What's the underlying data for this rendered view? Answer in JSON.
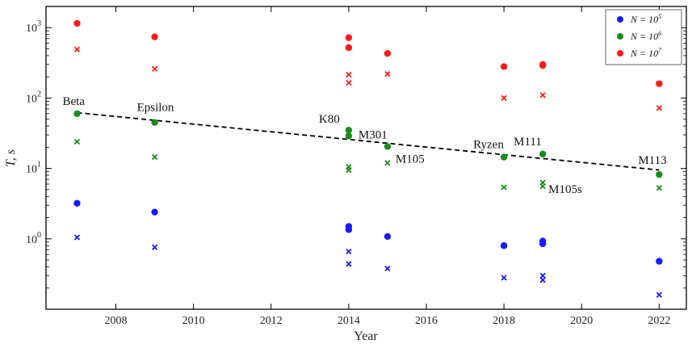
{
  "chart_data": {
    "type": "scatter",
    "xlabel": "Year",
    "ylabel": "T, s",
    "xlim": [
      2006.2,
      2022.7
    ],
    "ylim": [
      0.1,
      2000
    ],
    "yscale": "log",
    "grid": false,
    "legend_position": "top-right",
    "x_ticks": [
      2008,
      2010,
      2012,
      2014,
      2016,
      2018,
      2020,
      2022
    ],
    "y_ticks": [
      {
        "value": 1,
        "base": "10",
        "exp": "0"
      },
      {
        "value": 10,
        "base": "10",
        "exp": "1"
      },
      {
        "value": 100,
        "base": "10",
        "exp": "2"
      },
      {
        "value": 1000,
        "base": "10",
        "exp": "3"
      }
    ],
    "colors": {
      "n1e5": "#1a1aff",
      "n1e6": "#1a8c1a",
      "n1e7": "#ff1a1a"
    },
    "legend": [
      {
        "series": "n1e5",
        "label_prefix": "N = 10",
        "label_exp": "5",
        "color": "#1a1aff"
      },
      {
        "series": "n1e6",
        "label_prefix": "N = 10",
        "label_exp": "6",
        "color": "#1a8c1a"
      },
      {
        "series": "n1e7",
        "label_prefix": "N = 10",
        "label_exp": "7",
        "color": "#ff1a1a"
      }
    ],
    "series": [
      {
        "key": "n1e5",
        "color": "#1a1aff",
        "dots": [
          {
            "x": 2007,
            "y": 3.2
          },
          {
            "x": 2009,
            "y": 2.4
          },
          {
            "x": 2014,
            "y": 1.5
          },
          {
            "x": 2014,
            "y": 1.35
          },
          {
            "x": 2015,
            "y": 1.08
          },
          {
            "x": 2018,
            "y": 0.8
          },
          {
            "x": 2019,
            "y": 0.93
          },
          {
            "x": 2019,
            "y": 0.85
          },
          {
            "x": 2022,
            "y": 0.48
          }
        ],
        "crosses": [
          {
            "x": 2007,
            "y": 1.05
          },
          {
            "x": 2009,
            "y": 0.76
          },
          {
            "x": 2014,
            "y": 0.66
          },
          {
            "x": 2014,
            "y": 0.44
          },
          {
            "x": 2015,
            "y": 0.38
          },
          {
            "x": 2018,
            "y": 0.28
          },
          {
            "x": 2019,
            "y": 0.3
          },
          {
            "x": 2019,
            "y": 0.26
          },
          {
            "x": 2022,
            "y": 0.16
          }
        ]
      },
      {
        "key": "n1e6",
        "color": "#1a8c1a",
        "dots": [
          {
            "x": 2007,
            "y": 60
          },
          {
            "x": 2009,
            "y": 45
          },
          {
            "x": 2014,
            "y": 35
          },
          {
            "x": 2014,
            "y": 29
          },
          {
            "x": 2015,
            "y": 20.5
          },
          {
            "x": 2018,
            "y": 14.5
          },
          {
            "x": 2019,
            "y": 16
          },
          {
            "x": 2022,
            "y": 8.2
          }
        ],
        "crosses": [
          {
            "x": 2007,
            "y": 24
          },
          {
            "x": 2009,
            "y": 14.5
          },
          {
            "x": 2014,
            "y": 10.5
          },
          {
            "x": 2014,
            "y": 9.5
          },
          {
            "x": 2015,
            "y": 12
          },
          {
            "x": 2018,
            "y": 5.4
          },
          {
            "x": 2019,
            "y": 6.3
          },
          {
            "x": 2019,
            "y": 5.6
          },
          {
            "x": 2022,
            "y": 5.3
          }
        ]
      },
      {
        "key": "n1e7",
        "color": "#ff1a1a",
        "dots": [
          {
            "x": 2007,
            "y": 1150
          },
          {
            "x": 2009,
            "y": 740
          },
          {
            "x": 2014,
            "y": 720
          },
          {
            "x": 2014,
            "y": 520
          },
          {
            "x": 2015,
            "y": 430
          },
          {
            "x": 2018,
            "y": 280
          },
          {
            "x": 2019,
            "y": 300
          },
          {
            "x": 2019,
            "y": 290
          },
          {
            "x": 2022,
            "y": 160
          }
        ],
        "crosses": [
          {
            "x": 2007,
            "y": 490
          },
          {
            "x": 2009,
            "y": 260
          },
          {
            "x": 2014,
            "y": 215
          },
          {
            "x": 2014,
            "y": 165
          },
          {
            "x": 2015,
            "y": 220
          },
          {
            "x": 2018,
            "y": 100
          },
          {
            "x": 2019,
            "y": 110
          },
          {
            "x": 2022,
            "y": 72
          }
        ]
      }
    ],
    "trend_line": {
      "style": "dashed",
      "color": "#000000",
      "start": {
        "x": 2007,
        "y": 62
      },
      "end": {
        "x": 2022,
        "y": 9.5
      }
    },
    "annotations": [
      {
        "text": "Beta",
        "x": 2007,
        "y": 60
      },
      {
        "text": "Epsilon",
        "x": 2009,
        "y": 45
      },
      {
        "text": "K80",
        "x": 2014,
        "y": 35
      },
      {
        "text": "M301",
        "x": 2014,
        "y": 29
      },
      {
        "text": "M105",
        "x": 2015,
        "y": 20.5
      },
      {
        "text": "Ryzen",
        "x": 2018,
        "y": 14.5
      },
      {
        "text": "M111",
        "x": 2019,
        "y": 16
      },
      {
        "text": "M105s",
        "x": 2019,
        "y": 6.3
      },
      {
        "text": "M113",
        "x": 2022,
        "y": 8.2
      }
    ]
  }
}
